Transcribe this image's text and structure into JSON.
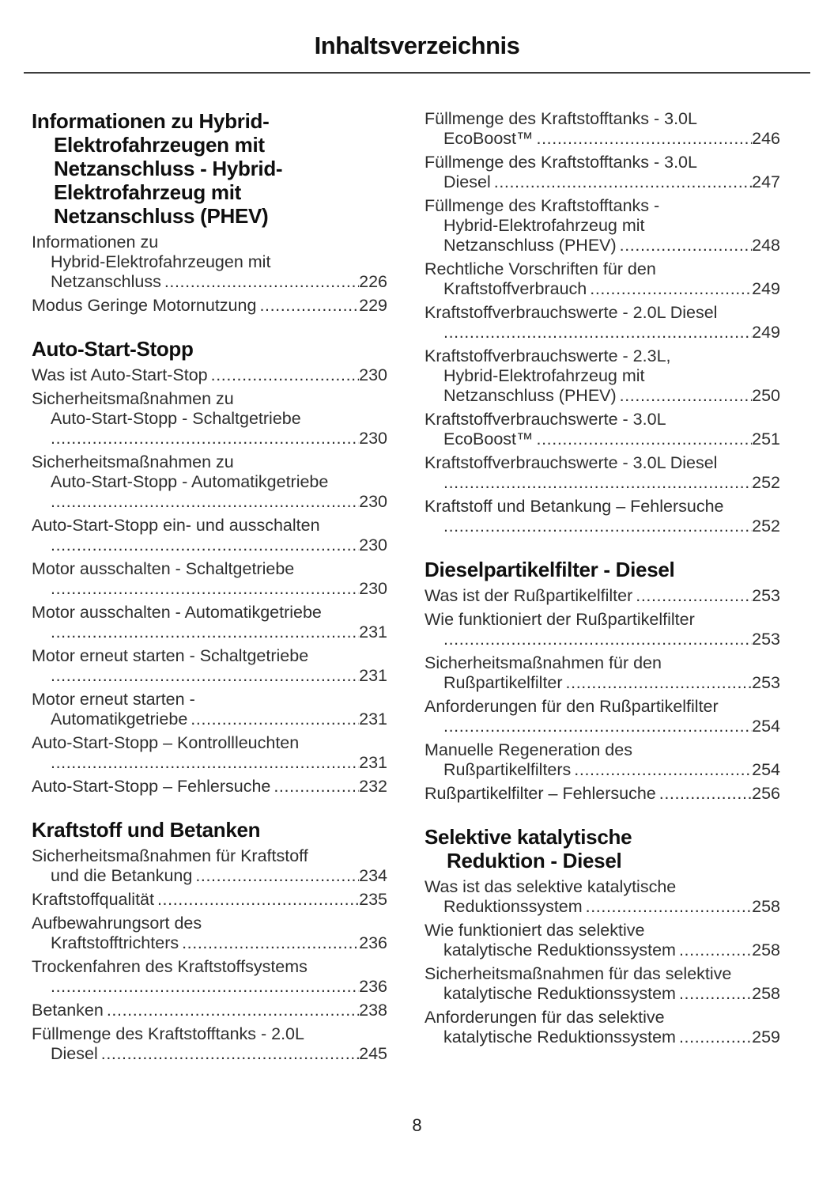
{
  "page": {
    "title": "Inhaltsverzeichnis",
    "footer_page_number": "8",
    "leader_char": ".",
    "text_color": "#2e2e2e",
    "heading_color": "#0f0f0f"
  },
  "columns": [
    {
      "sections": [
        {
          "name": "informationen-zu-phev",
          "heading_lines": [
            "Informationen zu Hybrid-",
            "Elektrofahrzeugen mit",
            "Netzanschluss - Hybrid-",
            "Elektrofahrzeug mit",
            "Netzanschluss (PHEV)"
          ],
          "entries": [
            {
              "lines": [
                "Informationen zu",
                "Hybrid-Elektrofahrzeugen mit",
                "Netzanschluss"
              ],
              "page": "226"
            },
            {
              "lines": [
                "Modus Geringe Motornutzung"
              ],
              "page": "229"
            }
          ]
        },
        {
          "name": "auto-start-stopp",
          "heading_lines": [
            "Auto-Start-Stopp"
          ],
          "entries": [
            {
              "lines": [
                "Was ist Auto-Start-Stop"
              ],
              "page": "230"
            },
            {
              "lines": [
                "Sicherheitsmaßnahmen zu",
                "Auto-Start-Stopp - Schaltgetriebe",
                ""
              ],
              "page": "230"
            },
            {
              "lines": [
                "Sicherheitsmaßnahmen zu",
                "Auto-Start-Stopp - Automatikgetriebe",
                ""
              ],
              "page": "230"
            },
            {
              "lines": [
                "Auto-Start-Stopp ein- und ausschalten",
                ""
              ],
              "page": "230"
            },
            {
              "lines": [
                "Motor ausschalten - Schaltgetriebe",
                ""
              ],
              "page": "230"
            },
            {
              "lines": [
                "Motor ausschalten - Automatikgetriebe",
                ""
              ],
              "page": "231"
            },
            {
              "lines": [
                "Motor erneut starten - Schaltgetriebe",
                ""
              ],
              "page": "231"
            },
            {
              "lines": [
                "Motor erneut starten -",
                "Automatikgetriebe"
              ],
              "page": "231"
            },
            {
              "lines": [
                "Auto-Start-Stopp – Kontrollleuchten",
                ""
              ],
              "page": "231"
            },
            {
              "lines": [
                "Auto-Start-Stopp – Fehlersuche"
              ],
              "page": "232"
            }
          ]
        },
        {
          "name": "kraftstoff-und-betanken",
          "heading_lines": [
            "Kraftstoff und Betanken"
          ],
          "entries": [
            {
              "lines": [
                "Sicherheitsmaßnahmen für Kraftstoff",
                "und die Betankung"
              ],
              "page": "234"
            },
            {
              "lines": [
                "Kraftstoffqualität"
              ],
              "page": "235"
            },
            {
              "lines": [
                "Aufbewahrungsort des",
                "Kraftstofftrichters"
              ],
              "page": "236"
            },
            {
              "lines": [
                "Trockenfahren des Kraftstoffsystems",
                ""
              ],
              "page": "236"
            },
            {
              "lines": [
                "Betanken"
              ],
              "page": "238"
            },
            {
              "lines": [
                "Füllmenge des Kraftstofftanks - 2.0L",
                "Diesel"
              ],
              "page": "245"
            }
          ]
        }
      ]
    },
    {
      "sections": [
        {
          "name": "kraftstoff-und-betanken-fortsetzung",
          "heading_lines": [],
          "entries": [
            {
              "lines": [
                "Füllmenge des Kraftstofftanks - 3.0L",
                "EcoBoost™"
              ],
              "page": "246"
            },
            {
              "lines": [
                "Füllmenge des Kraftstofftanks - 3.0L",
                "Diesel"
              ],
              "page": "247"
            },
            {
              "lines": [
                "Füllmenge des Kraftstofftanks -",
                "Hybrid-Elektrofahrzeug mit",
                "Netzanschluss (PHEV)"
              ],
              "page": "248"
            },
            {
              "lines": [
                "Rechtliche Vorschriften für den",
                "Kraftstoffverbrauch"
              ],
              "page": "249"
            },
            {
              "lines": [
                "Kraftstoffverbrauchswerte - 2.0L Diesel",
                ""
              ],
              "page": "249"
            },
            {
              "lines": [
                "Kraftstoffverbrauchswerte - 2.3L,",
                "Hybrid-Elektrofahrzeug mit",
                "Netzanschluss (PHEV)"
              ],
              "page": "250"
            },
            {
              "lines": [
                "Kraftstoffverbrauchswerte - 3.0L",
                "EcoBoost™"
              ],
              "page": "251"
            },
            {
              "lines": [
                "Kraftstoffverbrauchswerte - 3.0L Diesel",
                ""
              ],
              "page": "252"
            },
            {
              "lines": [
                "Kraftstoff und Betankung – Fehlersuche",
                ""
              ],
              "page": "252"
            }
          ]
        },
        {
          "name": "dieselpartikelfilter-diesel",
          "heading_lines": [
            "Dieselpartikelfilter - Diesel"
          ],
          "entries": [
            {
              "lines": [
                "Was ist der Rußpartikelfilter"
              ],
              "page": "253"
            },
            {
              "lines": [
                "Wie funktioniert der Rußpartikelfilter",
                ""
              ],
              "page": "253"
            },
            {
              "lines": [
                "Sicherheitsmaßnahmen für den",
                "Rußpartikelfilter"
              ],
              "page": "253"
            },
            {
              "lines": [
                "Anforderungen für den Rußpartikelfilter",
                ""
              ],
              "page": "254"
            },
            {
              "lines": [
                "Manuelle Regeneration des",
                "Rußpartikelfilters"
              ],
              "page": "254"
            },
            {
              "lines": [
                "Rußpartikelfilter – Fehlersuche"
              ],
              "page": "256"
            }
          ]
        },
        {
          "name": "selektive-katalytische-reduktion-diesel",
          "heading_lines": [
            "Selektive katalytische",
            "Reduktion - Diesel"
          ],
          "entries": [
            {
              "lines": [
                "Was ist das selektive katalytische",
                "Reduktionssystem"
              ],
              "page": "258"
            },
            {
              "lines": [
                "Wie funktioniert das selektive",
                "katalytische Reduktionssystem"
              ],
              "page": "258"
            },
            {
              "lines": [
                "Sicherheitsmaßnahmen für das selektive",
                "katalytische Reduktionssystem"
              ],
              "page": "258"
            },
            {
              "lines": [
                "Anforderungen für das selektive",
                "katalytische Reduktionssystem"
              ],
              "page": "259"
            }
          ]
        }
      ]
    }
  ]
}
